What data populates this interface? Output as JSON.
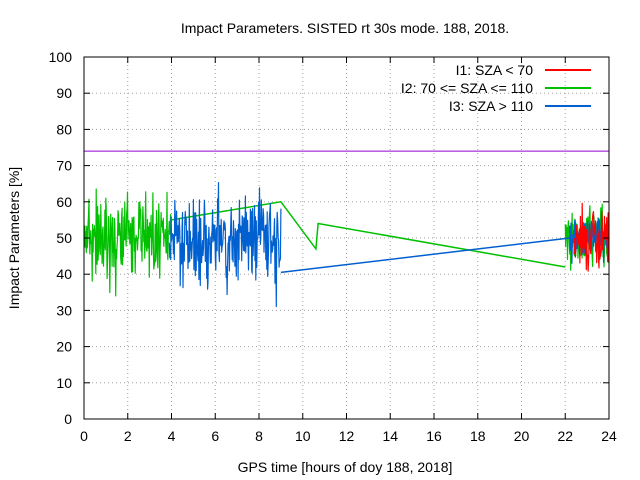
{
  "chart_data": {
    "type": "line",
    "title": "Impact Parameters. SISTED rt 30s mode. 188, 2018.",
    "xlabel": "GPS time [hours of doy 188, 2018]",
    "ylabel": "Impact Parameters [%]",
    "xlim": [
      0,
      24
    ],
    "ylim": [
      0,
      100
    ],
    "x_ticks": [
      0,
      2,
      4,
      6,
      8,
      10,
      12,
      14,
      16,
      18,
      20,
      22,
      24
    ],
    "y_ticks": [
      0,
      10,
      20,
      30,
      40,
      50,
      60,
      70,
      80,
      90,
      100
    ],
    "legend_position": "top-right",
    "reference_line": {
      "y": 74,
      "color": "#9400d3"
    },
    "series": [
      {
        "name": "I1: SZA < 70",
        "color": "#ff0000",
        "segments": [
          {
            "x_range": [
              22.4,
              24.0
            ],
            "mean": 50,
            "amp": 9,
            "seed": 7
          }
        ]
      },
      {
        "name": "I2: 70 <= SZA <= 110",
        "color": "#00c000",
        "segments": [
          {
            "x_range": [
              0.0,
              4.0
            ],
            "mean": 50,
            "amp": 13,
            "seed": 11
          },
          {
            "x_range": [
              22.0,
              24.0
            ],
            "mean": 50,
            "amp": 9,
            "seed": 13
          }
        ],
        "sparse_points": [
          [
            4.0,
            55
          ],
          [
            9.0,
            60
          ],
          [
            10.6,
            47
          ],
          [
            10.7,
            54
          ],
          [
            22.0,
            42
          ]
        ]
      },
      {
        "name": "I3: SZA > 110",
        "color": "#0060d0",
        "segments": [
          {
            "x_range": [
              3.9,
              9.0
            ],
            "mean": 50,
            "amp": 13,
            "seed": 17
          },
          {
            "x_range": [
              22.2,
              24.0
            ],
            "mean": 50,
            "amp": 7,
            "seed": 19
          }
        ],
        "sparse_points": [
          [
            9.0,
            40.5
          ],
          [
            22.2,
            50
          ]
        ]
      }
    ]
  }
}
